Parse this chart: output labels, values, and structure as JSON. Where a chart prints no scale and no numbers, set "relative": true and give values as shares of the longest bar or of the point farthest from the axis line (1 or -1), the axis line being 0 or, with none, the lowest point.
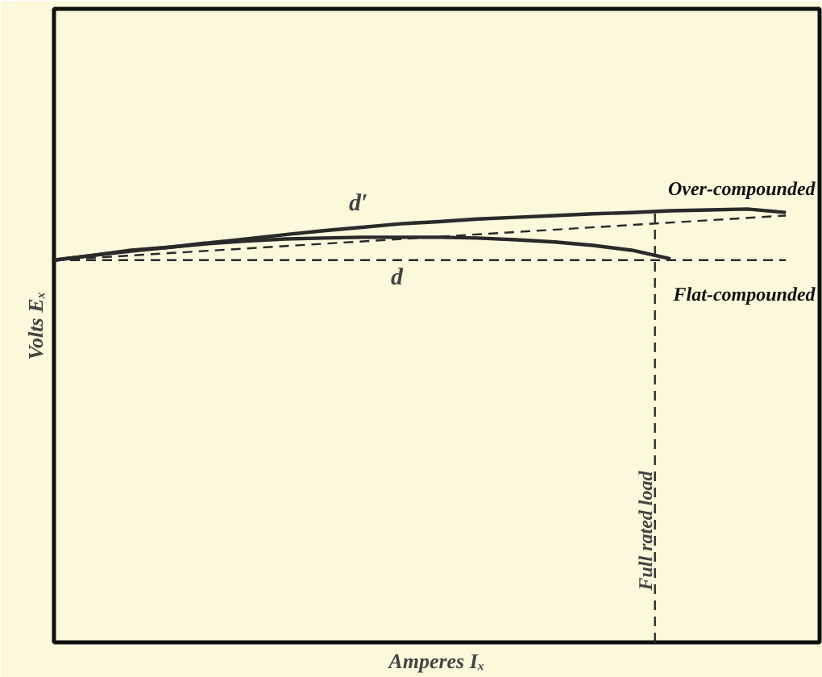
{
  "chart_data": {
    "type": "line",
    "relative": true,
    "xlabel": "Amperes Iₓ",
    "ylabel": "Volts Eₓ",
    "categories": [
      null,
      null,
      null,
      null,
      null,
      null,
      null,
      null,
      null,
      null,
      null,
      null,
      null,
      null,
      null,
      null,
      null,
      null,
      null,
      null
    ],
    "series": [
      {
        "name": "Over-compounded",
        "color": "#2a2a2a",
        "values": [
          0.882,
          0.893,
          0.903,
          0.912,
          0.922,
          0.931,
          0.941,
          0.95,
          0.958,
          0.966,
          0.971,
          0.977,
          0.981,
          0.985,
          0.989,
          0.992,
          0.996,
          0.998,
          1.0,
          0.992
        ]
      },
      {
        "name": "Flat-compounded",
        "color": "#2a2a2a",
        "values": [
          0.882,
          0.893,
          0.905,
          0.912,
          0.92,
          0.926,
          0.931,
          0.933,
          0.935,
          0.935,
          0.935,
          0.933,
          0.929,
          0.924,
          0.916,
          0.905,
          0.885,
          null,
          null,
          null
        ]
      },
      {
        "color": "#2a2a2a",
        "line_style": "dashed",
        "values": [
          0.882,
          null,
          null,
          null,
          null,
          null,
          null,
          null,
          null,
          null,
          null,
          null,
          null,
          null,
          null,
          null,
          null,
          null,
          null,
          0.985
        ]
      },
      {
        "color": "#2a2a2a",
        "line_style": "dashed",
        "values": [
          0.882,
          null,
          null,
          null,
          null,
          null,
          null,
          null,
          null,
          null,
          null,
          null,
          null,
          null,
          null,
          null,
          null,
          null,
          null,
          0.882
        ]
      }
    ],
    "annotations": [
      "d′",
      "d",
      "Full rated load"
    ],
    "marker": "none",
    "line_style": "solid"
  }
}
